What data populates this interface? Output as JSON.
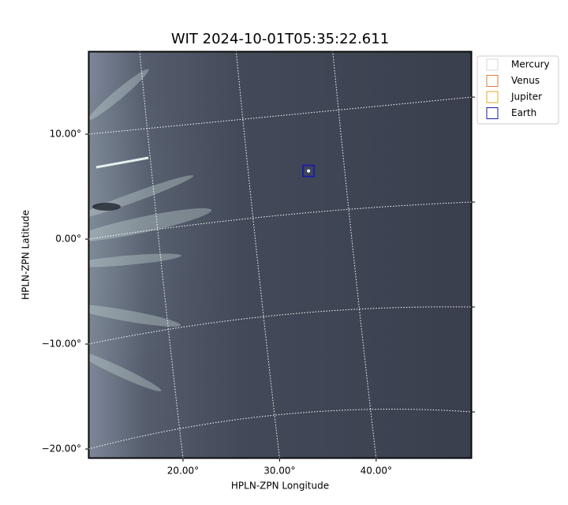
{
  "chart_data": {
    "type": "scatter",
    "title": "WIT 2024-10-01T05:35:22.611",
    "x_label": "HPLN-ZPN Longitude",
    "y_label": "HPLN-ZPN Latitude",
    "xlim": [
      10.2,
      49.9
    ],
    "ylim": [
      -20.9,
      17.9
    ],
    "xticks": [
      {
        "value": 20,
        "label": "20.00°"
      },
      {
        "value": 30,
        "label": "30.00°"
      },
      {
        "value": 40,
        "label": "40.00°"
      }
    ],
    "yticks": [
      {
        "value": 10,
        "label": "10.00°"
      },
      {
        "value": 0,
        "label": "0.00°"
      },
      {
        "value": -10,
        "label": "−10.00°"
      },
      {
        "value": -20,
        "label": "−20.00°"
      }
    ],
    "grid": true,
    "legend": "outside upper right",
    "series": [
      {
        "name": "Mercury",
        "color": "#d8d8d8",
        "x": null,
        "y": null
      },
      {
        "name": "Venus",
        "color": "#e07b3a",
        "x": null,
        "y": null
      },
      {
        "name": "Jupiter",
        "color": "#e0a828",
        "x": null,
        "y": null
      },
      {
        "name": "Earth",
        "color": "#1c1ca8",
        "x": 33,
        "y": 6.5
      }
    ]
  }
}
